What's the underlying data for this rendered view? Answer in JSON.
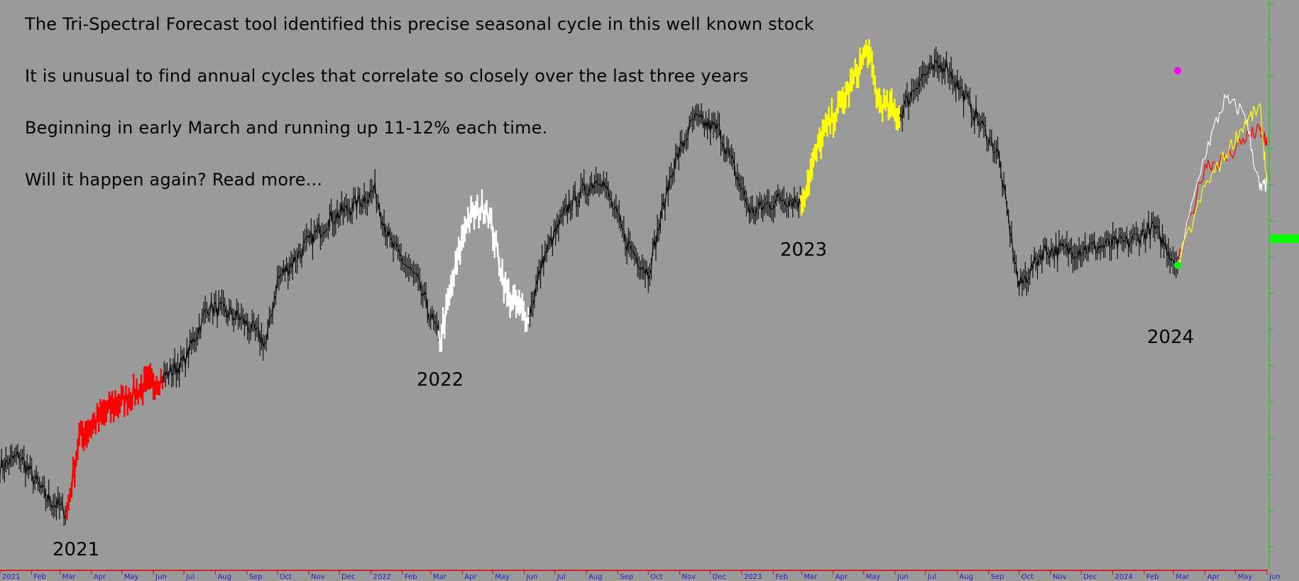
{
  "annotations": {
    "line1": "The Tri-Spectral Forecast tool identified this precise seasonal cycle in this well known stock",
    "line2": "It is unusual to find annual cycles that correlate so closely over the last three years",
    "line3": "Beginning in early March and running up 11-12% each time.",
    "line4": "Will it happen again? Read more..."
  },
  "year_labels": {
    "y2021": "2021",
    "y2022": "2022",
    "y2023": "2023",
    "y2024": "2024"
  },
  "colors": {
    "background": "#9a9a9a",
    "price": "#000000",
    "cycle_2021": "#ff0000",
    "cycle_2022": "#ffffff",
    "cycle_2023": "#ffff00",
    "axis_line": "#00cc00",
    "date_axis": "#e00000",
    "date_labels": "#1f1fcc",
    "marker_magenta": "#ff00ff",
    "marker_green": "#00ff00"
  },
  "chart_data": {
    "type": "line",
    "title": "",
    "xlabel": "",
    "ylabel": "",
    "y_scale": "price",
    "x_tick_labels": [
      "2021",
      "Feb",
      "Mar",
      "Apr",
      "May",
      "Jun",
      "Jul",
      "Aug",
      "Sep",
      "Oct",
      "Nov",
      "Dec",
      "2022",
      "Feb",
      "Mar",
      "Apr",
      "May",
      "Jun",
      "Jul",
      "Aug",
      "Sep",
      "Oct",
      "Nov",
      "Dec",
      "2023",
      "Feb",
      "Mar",
      "Apr",
      "May",
      "Jun",
      "Jul",
      "Aug",
      "Sep",
      "Oct",
      "Nov",
      "Dec",
      "2024",
      "Feb",
      "Mar",
      "Apr",
      "May",
      "Jun"
    ],
    "price_series": {
      "name": "",
      "dates": [
        "2021-01-01",
        "2021-01-20",
        "2021-02-15",
        "2021-03-08",
        "2021-03-20",
        "2021-04-20",
        "2021-05-20",
        "2021-06-10",
        "2021-07-01",
        "2021-07-25",
        "2021-08-25",
        "2021-09-20",
        "2021-10-01",
        "2021-10-25",
        "2021-11-20",
        "2021-12-15",
        "2022-01-05",
        "2022-01-20",
        "2022-02-15",
        "2022-03-10",
        "2022-04-05",
        "2022-04-25",
        "2022-05-15",
        "2022-06-05",
        "2022-06-20",
        "2022-07-15",
        "2022-08-15",
        "2022-09-10",
        "2022-10-01",
        "2022-10-25",
        "2022-11-15",
        "2022-12-10",
        "2023-01-10",
        "2023-02-10",
        "2023-03-01",
        "2023-03-20",
        "2023-04-15",
        "2023-05-05",
        "2023-05-15",
        "2023-06-05",
        "2023-06-25",
        "2023-07-20",
        "2023-08-15",
        "2023-09-10",
        "2023-10-01",
        "2023-10-25",
        "2023-11-20",
        "2023-12-20",
        "2024-01-15",
        "2024-02-10",
        "2024-02-25",
        "2024-03-05"
      ],
      "values": [
        0.12,
        0.15,
        0.04,
        0.0,
        0.2,
        0.28,
        0.33,
        0.36,
        0.4,
        0.55,
        0.52,
        0.45,
        0.62,
        0.7,
        0.78,
        0.82,
        0.86,
        0.72,
        0.62,
        0.46,
        0.78,
        0.82,
        0.58,
        0.52,
        0.68,
        0.82,
        0.9,
        0.72,
        0.64,
        0.92,
        1.05,
        1.02,
        0.8,
        0.84,
        0.83,
        1.0,
        1.12,
        1.24,
        1.1,
        1.06,
        1.16,
        1.2,
        1.08,
        0.96,
        0.6,
        0.7,
        0.7,
        0.71,
        0.72,
        0.76,
        0.7,
        0.66
      ]
    },
    "highlighted_cycles": [
      {
        "name": "2021",
        "color": "#ff0000",
        "start": "2021-03-08",
        "end": "2021-06-10"
      },
      {
        "name": "2022",
        "color": "#ffffff",
        "start": "2022-03-10",
        "end": "2022-06-05"
      },
      {
        "name": "2023",
        "color": "#ffff00",
        "start": "2023-03-01",
        "end": "2023-06-05"
      }
    ],
    "forecast_overlays": [
      {
        "name": "2021",
        "color": "#ff0000",
        "dates": [
          "2024-03-05",
          "2024-04-01",
          "2024-04-20",
          "2024-05-10",
          "2024-05-25",
          "2024-06-01"
        ],
        "values": [
          0.66,
          0.93,
          0.94,
          1.0,
          1.02,
          0.98
        ]
      },
      {
        "name": "2022",
        "color": "#ffffff",
        "dates": [
          "2024-03-05",
          "2024-04-01",
          "2024-04-20",
          "2024-05-10",
          "2024-05-25",
          "2024-06-01"
        ],
        "values": [
          0.66,
          0.96,
          1.1,
          1.07,
          0.86,
          0.88
        ]
      },
      {
        "name": "2023",
        "color": "#ffff00",
        "dates": [
          "2024-03-05",
          "2024-04-01",
          "2024-04-20",
          "2024-05-10",
          "2024-05-25",
          "2024-06-01"
        ],
        "values": [
          0.66,
          0.87,
          0.95,
          1.04,
          1.08,
          0.88
        ]
      }
    ],
    "markers": [
      {
        "name": "magenta-dot",
        "date": "2024-03-05",
        "value": 1.18,
        "color": "#ff00ff"
      },
      {
        "name": "green-dot",
        "date": "2024-03-05",
        "value": 0.66,
        "color": "#00ff00"
      }
    ],
    "xlim": [
      "2021-01-01",
      "2024-06-01"
    ],
    "ylim": [
      -0.15,
      1.35
    ],
    "grid": false,
    "legend": "none"
  }
}
